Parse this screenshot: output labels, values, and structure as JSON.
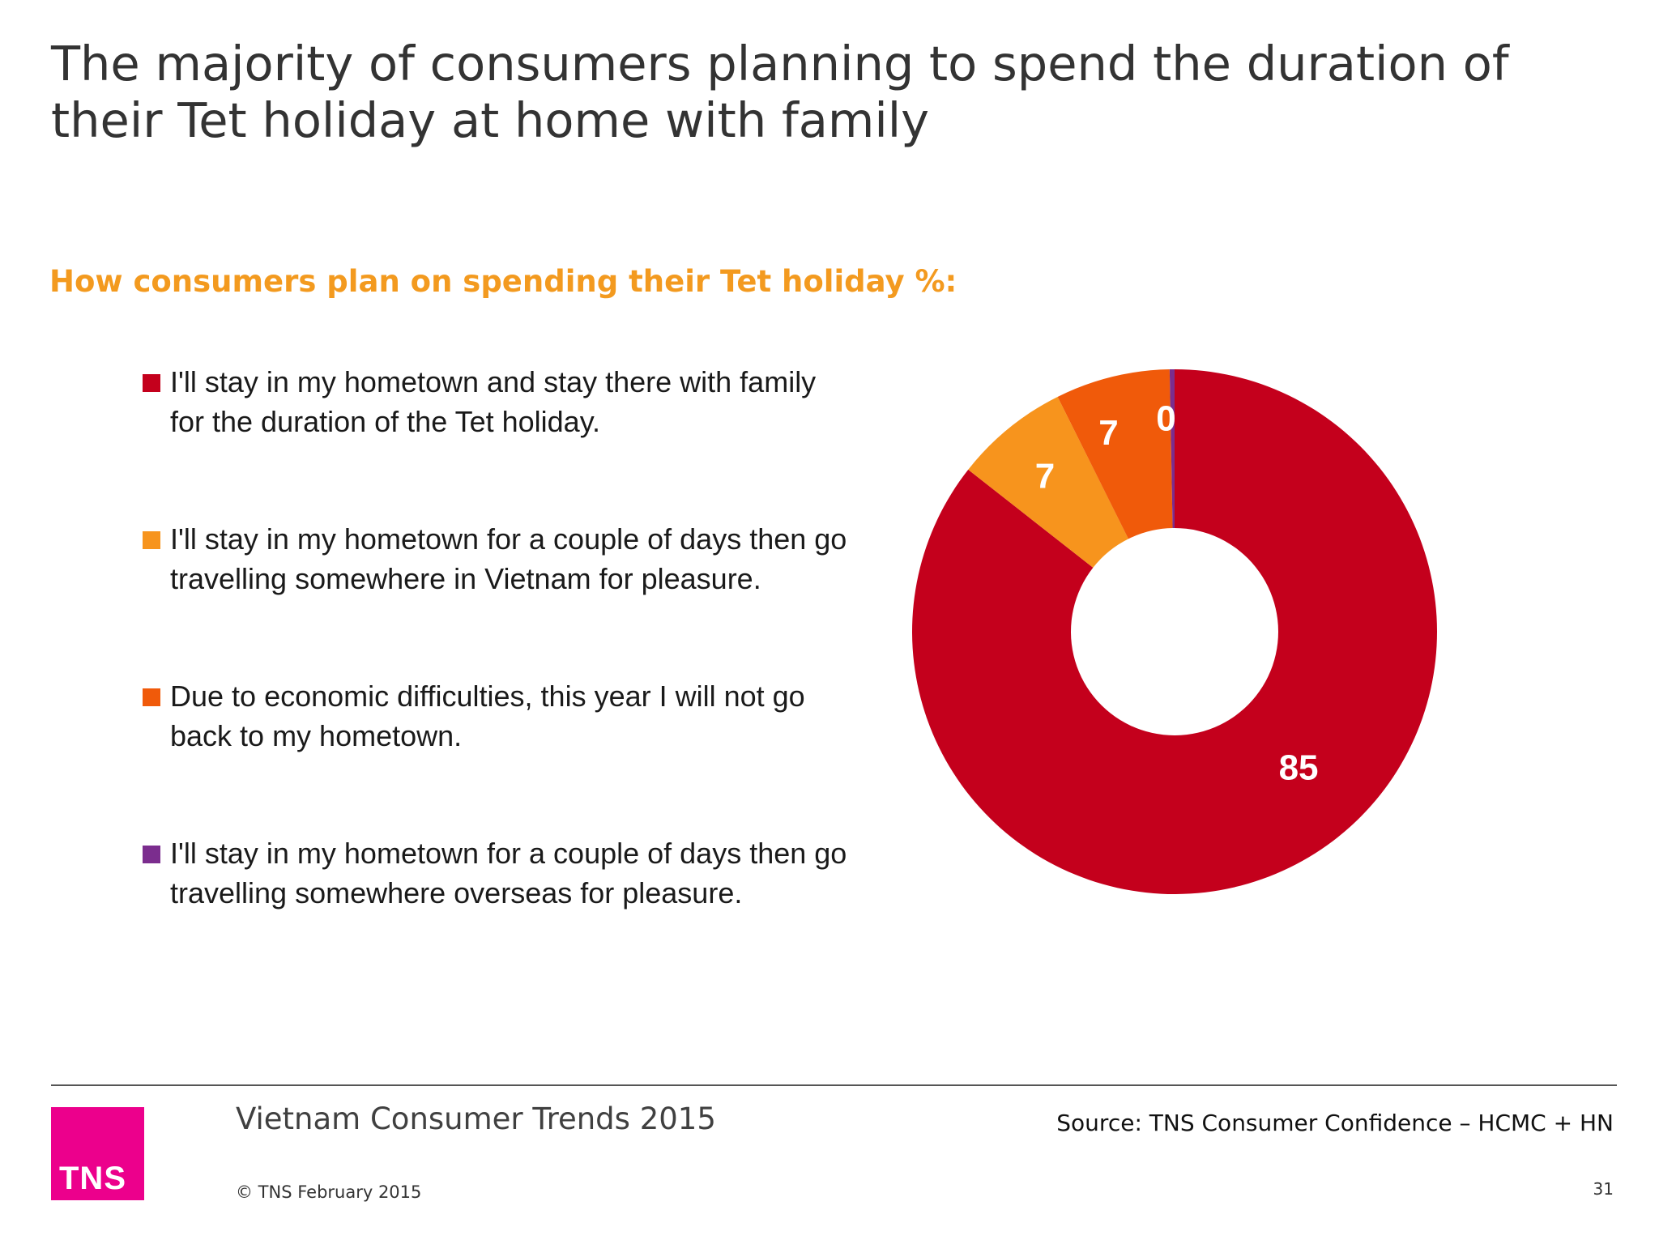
{
  "slide": {
    "title": "The majority of consumers planning to spend the duration of their Tet holiday at home with family",
    "page_number": "31"
  },
  "chart_data": {
    "type": "pie",
    "title": "How consumers plan on spending their Tet holiday %:",
    "donut": true,
    "legend_position": "left",
    "series": [
      {
        "name": "I'll stay in my hometown and stay there with family for the duration of the Tet holiday.",
        "value": 85,
        "label": "85",
        "color": "#c4001c"
      },
      {
        "name": "I'll stay in my hometown for a couple of days then go travelling somewhere in Vietnam for pleasure.",
        "value": 7,
        "label": "7",
        "color": "#f7941d"
      },
      {
        "name": "Due to economic difficulties, this year I will not go back to my hometown.",
        "value": 7,
        "label": "7",
        "color": "#f05a0a"
      },
      {
        "name": "I'll stay in my hometown for a couple of days then go travelling somewhere overseas for pleasure.",
        "value": 0.3,
        "label": "0",
        "color": "#7b2d8e"
      }
    ]
  },
  "footer": {
    "report_title": "Vietnam Consumer Trends 2015",
    "copyright": "© TNS February 2015",
    "source": "Source: TNS  Consumer Confidence – HCMC + HN",
    "logo_text": "TNS",
    "logo_color": "#ec008c"
  }
}
